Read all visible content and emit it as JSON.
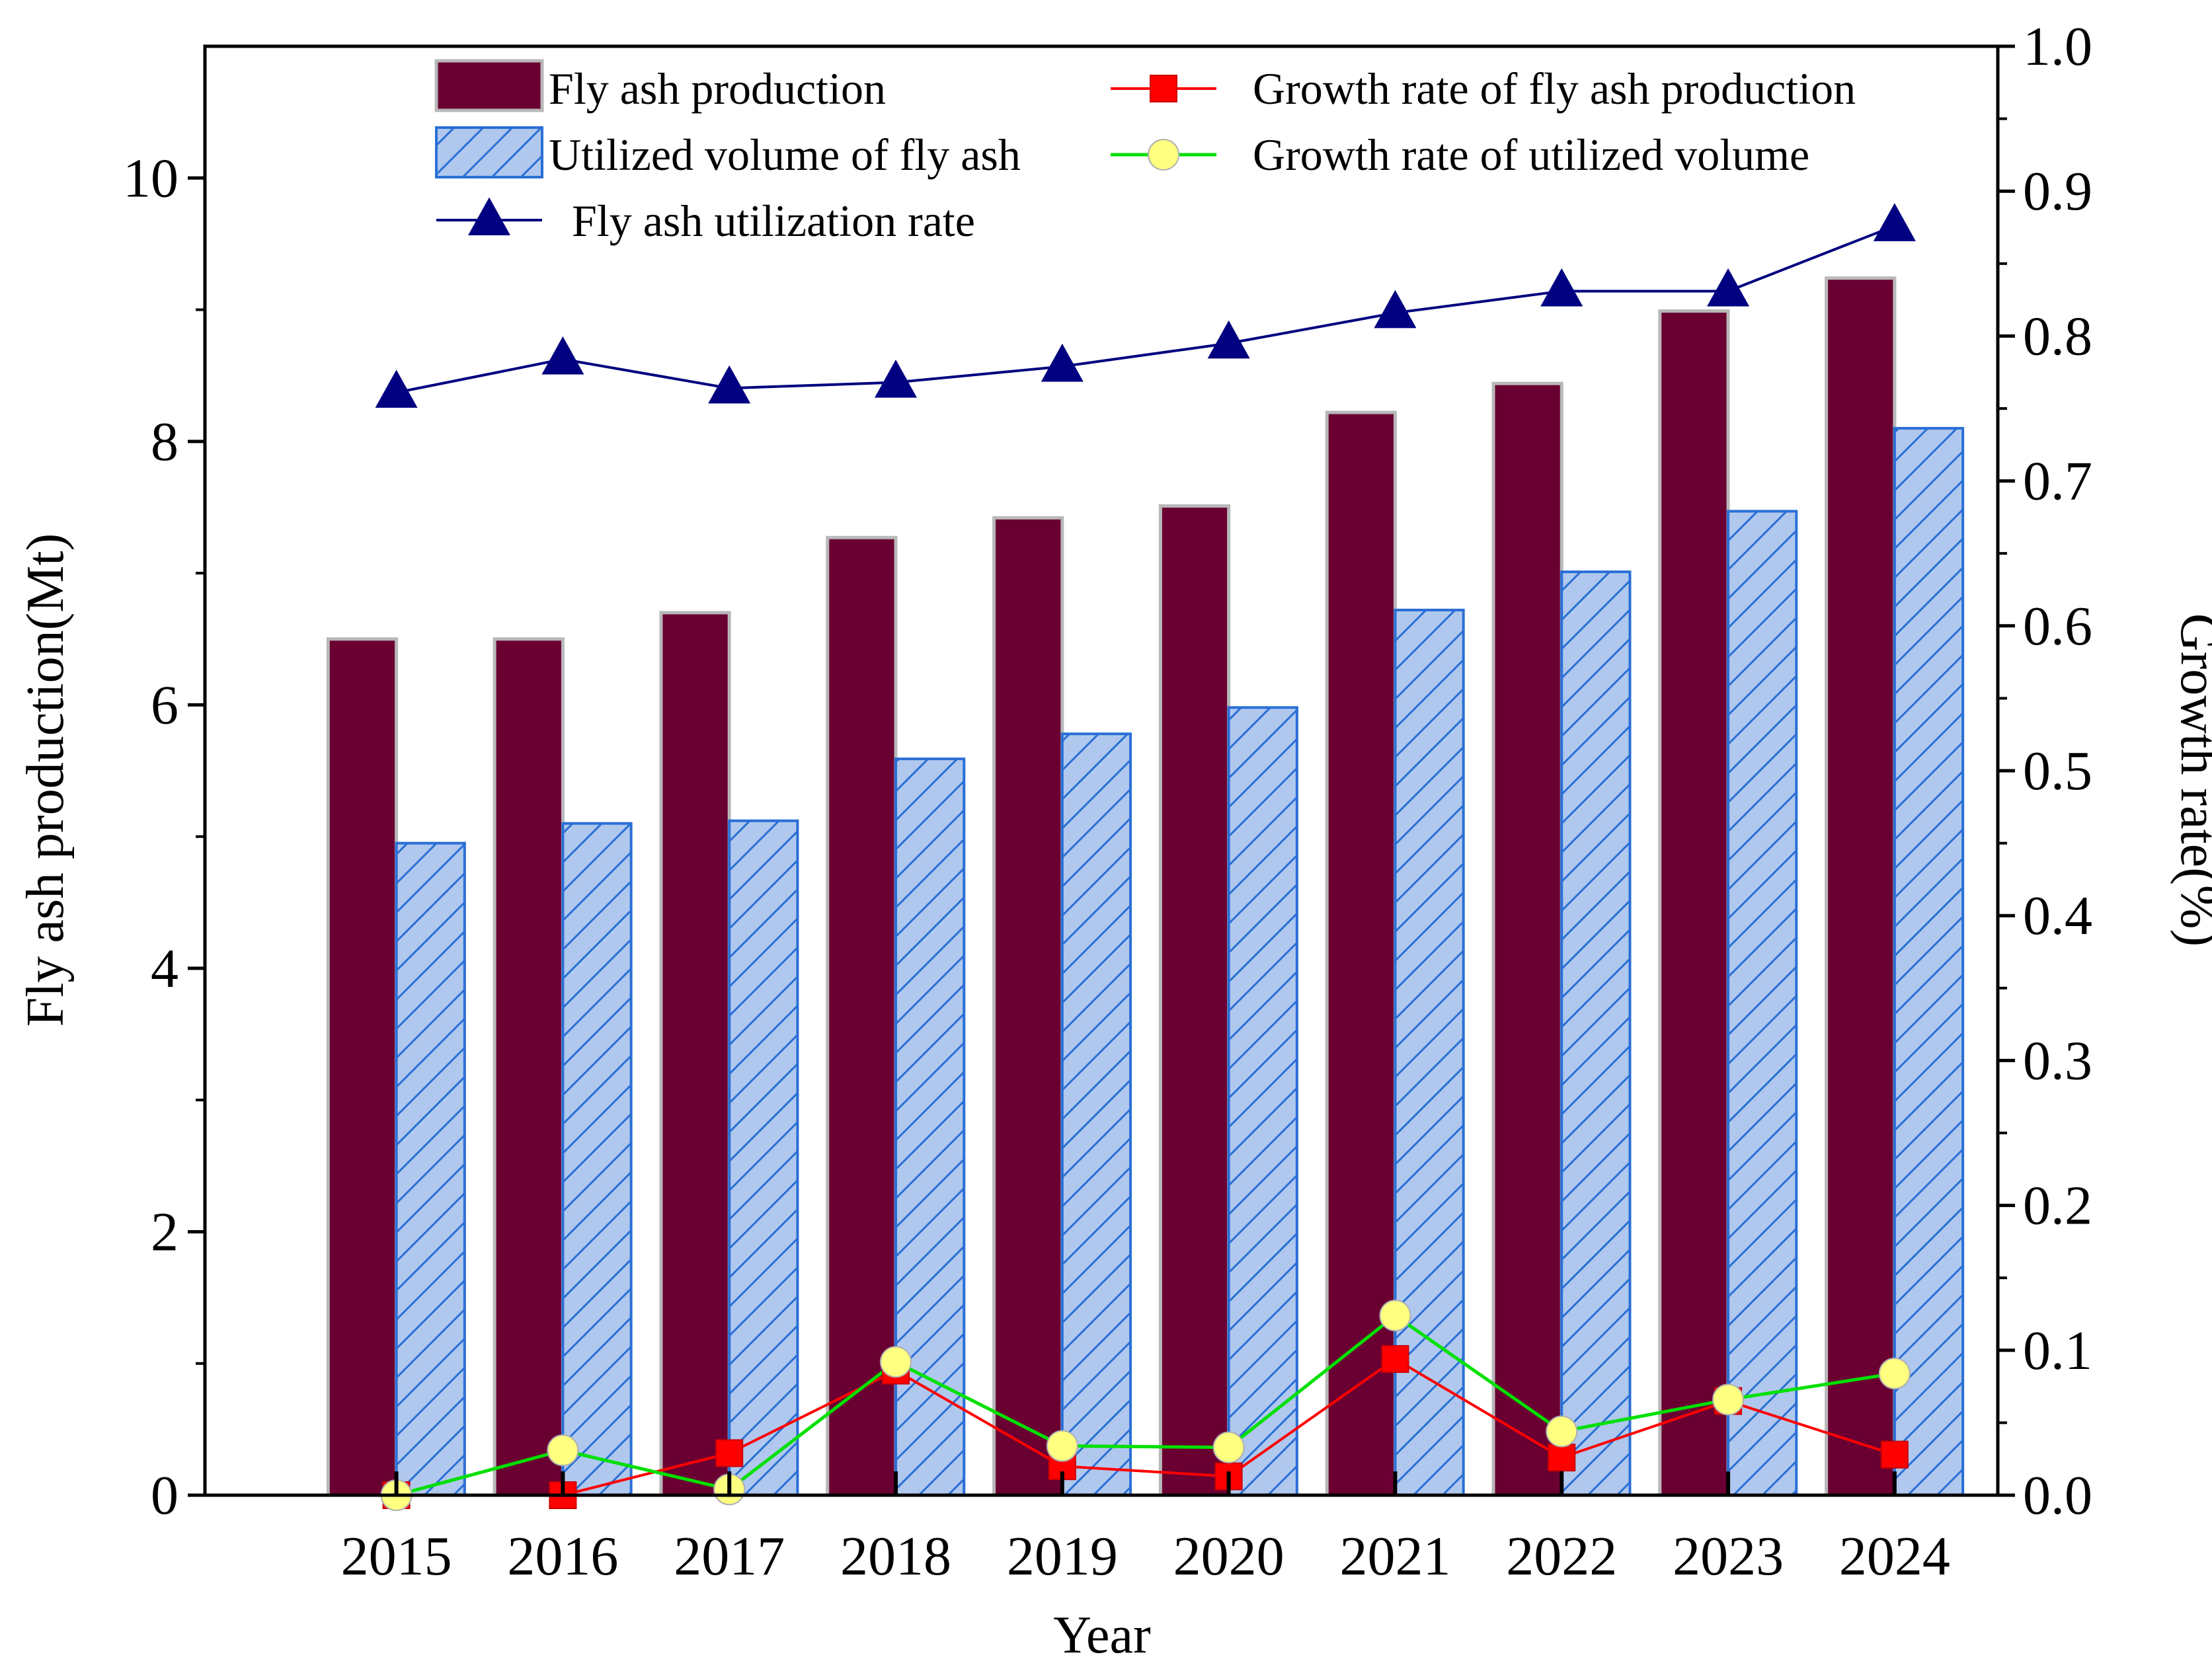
{
  "colors": {
    "production": "#6a0032",
    "utilized_fill": "#b0c8ee",
    "utilized_edge": "#2a6fd6",
    "growth_production": "#ff0000",
    "growth_utilized": "#00e000",
    "growth_utilized_marker": "#ffff80",
    "utilization_rate": "#000080"
  },
  "chart_data": {
    "type": "bar",
    "xlabel": "Year",
    "ylabel": "Fly ash production(Mt)",
    "y2label": "Growth rate(%)",
    "categories": [
      "2015",
      "2016",
      "2017",
      "2018",
      "2019",
      "2020",
      "2021",
      "2022",
      "2023",
      "2024"
    ],
    "ylim": [
      0,
      11
    ],
    "yticks": [
      "0",
      "2",
      "4",
      "6",
      "8",
      "10"
    ],
    "y2lim": [
      0,
      1.0
    ],
    "y2ticks": [
      "0.0",
      "0.1",
      "0.2",
      "0.3",
      "0.4",
      "0.5",
      "0.6",
      "0.7",
      "0.8",
      "0.9",
      "1.0"
    ],
    "grid": false,
    "legend_position": "top",
    "series": [
      {
        "name": "Fly ash production",
        "type": "bar",
        "axis": "left",
        "values": [
          6.5,
          6.5,
          6.7,
          7.27,
          7.42,
          7.51,
          8.22,
          8.44,
          8.99,
          9.24
        ]
      },
      {
        "name": "Utilized volume of fly ash",
        "type": "bar",
        "axis": "left",
        "hatch": true,
        "values": [
          4.95,
          5.1,
          5.12,
          5.59,
          5.78,
          5.98,
          6.72,
          7.01,
          7.47,
          8.1
        ]
      },
      {
        "name": "Growth rate of fly ash production",
        "type": "line",
        "axis": "right",
        "marker": "square",
        "values": [
          0.0,
          0.0,
          0.029,
          0.086,
          0.02,
          0.013,
          0.094,
          0.026,
          0.065,
          0.028
        ]
      },
      {
        "name": "Growth rate of utilized volume",
        "type": "line",
        "axis": "right",
        "marker": "circle",
        "values": [
          0.0,
          0.031,
          0.004,
          0.092,
          0.034,
          0.033,
          0.124,
          0.044,
          0.066,
          0.084
        ]
      },
      {
        "name": "Fly ash utilization rate",
        "type": "line",
        "axis": "right",
        "marker": "triangle",
        "values": [
          0.761,
          0.784,
          0.764,
          0.768,
          0.779,
          0.795,
          0.816,
          0.831,
          0.831,
          0.876
        ]
      }
    ]
  }
}
